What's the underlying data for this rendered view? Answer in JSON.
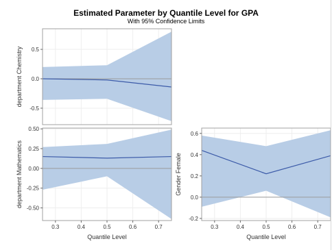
{
  "title": "Estimated Parameter by Quantile Level for GPA",
  "subtitle": "With 95% Confidence Limits",
  "colors": {
    "band": "#b8cde6",
    "line": "#3b5aa8",
    "zero": "#9a9a9a",
    "grid": "#eeeeee",
    "frame": "#a0a0a0"
  },
  "chart_data": [
    {
      "type": "area",
      "ylabel": "department Chemistry",
      "x": [
        0.25,
        0.5,
        0.75
      ],
      "estimate": [
        0.0,
        -0.02,
        -0.14
      ],
      "lower": [
        -0.36,
        -0.34,
        -0.72
      ],
      "upper": [
        0.2,
        0.23,
        0.8
      ],
      "ylim": [
        -0.78,
        0.85
      ],
      "xlim": [
        0.25,
        0.75
      ],
      "yticks": [
        "0.5",
        "0.0",
        "-0.5"
      ],
      "xticks": [],
      "xlabel": "",
      "reference_line": 0
    },
    {
      "type": "area",
      "ylabel": "department Mathematics",
      "x": [
        0.25,
        0.5,
        0.75
      ],
      "estimate": [
        0.15,
        0.13,
        0.15
      ],
      "lower": [
        -0.27,
        -0.1,
        -0.64
      ],
      "upper": [
        0.27,
        0.31,
        0.49
      ],
      "ylim": [
        -0.66,
        0.51
      ],
      "xlim": [
        0.25,
        0.75
      ],
      "yticks": [
        "0.50",
        "0.25",
        "0.00",
        "-0.25",
        "-0.50"
      ],
      "xticks": [
        "0.3",
        "0.4",
        "0.5",
        "0.6",
        "0.7"
      ],
      "xlabel": "Quantile Level",
      "reference_line": 0
    },
    {
      "type": "area",
      "ylabel": "Gender Female",
      "x": [
        0.25,
        0.5,
        0.75
      ],
      "estimate": [
        0.44,
        0.22,
        0.39
      ],
      "lower": [
        -0.09,
        0.06,
        -0.19
      ],
      "upper": [
        0.58,
        0.48,
        0.63
      ],
      "ylim": [
        -0.22,
        0.65
      ],
      "xlim": [
        0.25,
        0.75
      ],
      "yticks": [
        "0.6",
        "0.4",
        "0.2",
        "0.0",
        "-0.2"
      ],
      "xticks": [
        "0.3",
        "0.4",
        "0.5",
        "0.6",
        "0.7"
      ],
      "xlabel": "Quantile Level",
      "reference_line": 0
    }
  ]
}
